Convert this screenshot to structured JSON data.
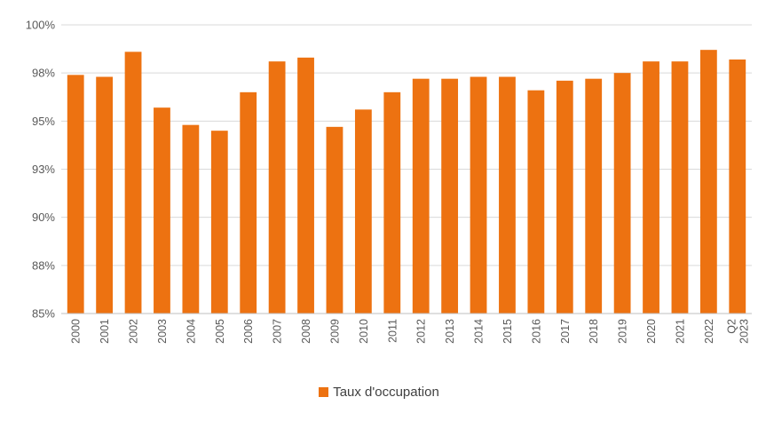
{
  "chart_data": {
    "type": "bar",
    "title": "",
    "xlabel": "",
    "ylabel": "",
    "ylim": [
      85,
      100
    ],
    "yticks": [
      85,
      87.5,
      90,
      92.5,
      95,
      97.5,
      100
    ],
    "ytick_labels": [
      "85%",
      "88%",
      "90%",
      "93%",
      "95%",
      "98%",
      "100%"
    ],
    "grid": true,
    "legend_position": "bottom",
    "categories": [
      "2000",
      "2001",
      "2002",
      "2003",
      "2004",
      "2005",
      "2006",
      "2007",
      "2008",
      "2009",
      "2010",
      "2011",
      "2012",
      "2013",
      "2014",
      "2015",
      "2016",
      "2017",
      "2018",
      "2019",
      "2020",
      "2021",
      "2022",
      "Q2 2023"
    ],
    "series": [
      {
        "name": "Taux d'occupation",
        "color": "#ED7211",
        "values": [
          97.4,
          97.3,
          98.6,
          95.7,
          94.8,
          94.5,
          96.5,
          98.1,
          98.3,
          94.7,
          95.6,
          96.5,
          97.2,
          97.2,
          97.3,
          97.3,
          96.6,
          97.1,
          97.2,
          97.5,
          98.1,
          98.1,
          98.7,
          98.2
        ]
      }
    ]
  }
}
